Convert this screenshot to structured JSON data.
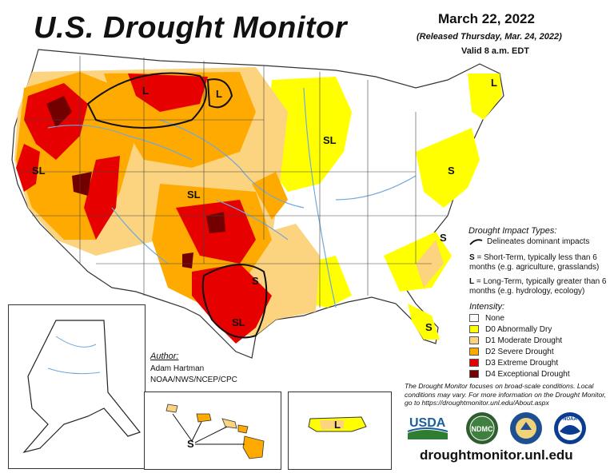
{
  "title": "U.S. Drought Monitor",
  "date": "March 22, 2022",
  "released": "(Released Thursday, Mar. 24, 2022)",
  "valid": "Valid 8 a.m. EDT",
  "impact": {
    "title": "Drought Impact Types:",
    "delineates": "Delineates dominant impacts",
    "short_term": "= Short-Term, typically less than 6 months (e.g. agriculture, grasslands)",
    "long_term": "= Long-Term, typically greater than 6 months (e.g. hydrology, ecology)",
    "short_letter": "S",
    "long_letter": "L"
  },
  "intensity": {
    "title": "Intensity:",
    "levels": [
      {
        "label": "None",
        "color": "#ffffff"
      },
      {
        "label": "D0 Abnormally Dry",
        "color": "#ffff00"
      },
      {
        "label": "D1 Moderate Drought",
        "color": "#fcd37f"
      },
      {
        "label": "D2 Severe Drought",
        "color": "#ffaa00"
      },
      {
        "label": "D3 Extreme Drought",
        "color": "#e60000"
      },
      {
        "label": "D4 Exceptional Drought",
        "color": "#730000"
      }
    ]
  },
  "author": {
    "heading": "Author:",
    "name": "Adam Hartman",
    "org": "NOAA/NWS/NCEP/CPC"
  },
  "note": "The Drought Monitor focuses on broad-scale conditions. Local conditions may vary. For more information on the Drought Monitor, go to https://droughtmonitor.unl.edu/About.aspx",
  "website": "droughtmonitor.unl.edu",
  "map_labels": {
    "l_north_idaho": "L",
    "l_north_montana": "L",
    "sl_california": "SL",
    "sl_colorado": "SL",
    "sl_wisconsin": "SL",
    "sl_texas": "SL",
    "s_texas": "S",
    "s_maryland": "S",
    "s_carolina": "S",
    "s_florida": "S",
    "l_maine": "L",
    "s_hawaii": "S",
    "l_puerto_rico": "L"
  },
  "logos": {
    "usda": "USDA",
    "ndmc": "NDMC",
    "noaa": "NOAA"
  },
  "colors": {
    "river": "#6fa8dc",
    "outline": "#333333"
  }
}
